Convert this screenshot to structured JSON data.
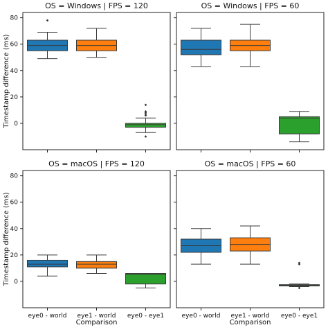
{
  "chart_data": {
    "type": "box",
    "y_label": "Timestamp difference (ms)",
    "x_label": "Comparison",
    "categories": [
      "eye0 - world",
      "eye1 - world",
      "eye0 - eye1"
    ],
    "colors": [
      "#1f77b4",
      "#ff7f0e",
      "#2ca02c"
    ],
    "y_ticks": [
      0,
      20,
      40,
      60,
      80
    ],
    "ylim": [
      -20,
      84
    ],
    "panels": [
      {
        "title": "OS = Windows | FPS = 120",
        "boxes": [
          {
            "whisker_low": 49,
            "q1": 55,
            "median": 59,
            "q3": 63,
            "whisker_high": 69,
            "outliers": [
              78
            ]
          },
          {
            "whisker_low": 50,
            "q1": 55,
            "median": 59,
            "q3": 63,
            "whisker_high": 72,
            "outliers": []
          },
          {
            "whisker_low": -7,
            "q1": -3,
            "median": -1,
            "q3": 0,
            "whisker_high": 4,
            "outliers": [
              -10,
              6,
              7,
              8,
              9,
              14
            ]
          }
        ]
      },
      {
        "title": "OS = Windows | FPS = 60",
        "boxes": [
          {
            "whisker_low": 43,
            "q1": 52,
            "median": 56,
            "q3": 63,
            "whisker_high": 72,
            "outliers": []
          },
          {
            "whisker_low": 43,
            "q1": 55,
            "median": 59,
            "q3": 63,
            "whisker_high": 75,
            "outliers": []
          },
          {
            "whisker_low": -14,
            "q1": -8,
            "median": 4,
            "q3": 5,
            "whisker_high": 9,
            "outliers": []
          }
        ]
      },
      {
        "title": "OS = macOS | FPS = 120",
        "boxes": [
          {
            "whisker_low": 4,
            "q1": 11,
            "median": 13,
            "q3": 16,
            "whisker_high": 20,
            "outliers": []
          },
          {
            "whisker_low": 6,
            "q1": 10,
            "median": 13,
            "q3": 15,
            "whisker_high": 20,
            "outliers": []
          },
          {
            "whisker_low": -5,
            "q1": -2,
            "median": 5,
            "q3": 6,
            "whisker_high": 6,
            "outliers": []
          }
        ]
      },
      {
        "title": "OS = macOS | FPS = 60",
        "boxes": [
          {
            "whisker_low": 13,
            "q1": 22,
            "median": 27,
            "q3": 32,
            "whisker_high": 40,
            "outliers": []
          },
          {
            "whisker_low": 13,
            "q1": 23,
            "median": 28,
            "q3": 33,
            "whisker_high": 42,
            "outliers": []
          },
          {
            "whisker_low": -4,
            "q1": -3.5,
            "median": -3,
            "q3": -2.5,
            "whisker_high": -2,
            "outliers": [
              -5,
              13,
              14
            ]
          }
        ]
      }
    ]
  }
}
